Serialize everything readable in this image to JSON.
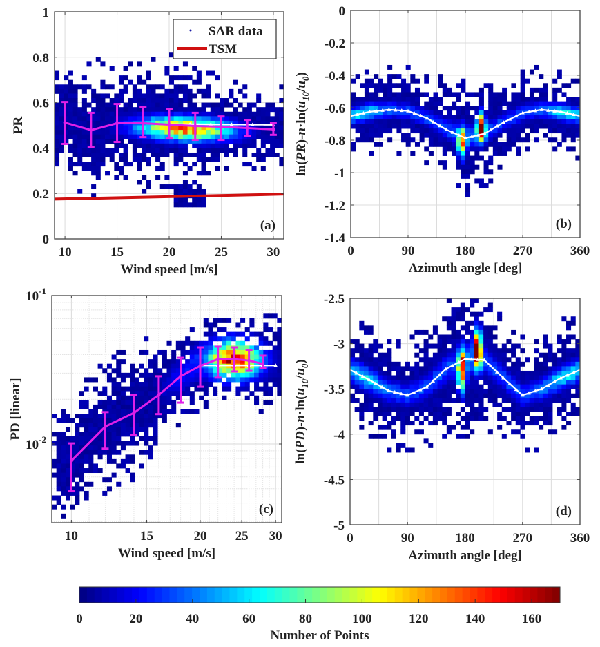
{
  "chart_data": [
    {
      "id": "a",
      "type": "heatmap",
      "panel_label": "(a)",
      "xlabel": "Wind speed [m/s]",
      "ylabel": "PR",
      "xscale": "linear",
      "yscale": "linear",
      "xlim": [
        9,
        31
      ],
      "ylim": [
        0,
        1
      ],
      "xticks": [
        10,
        15,
        20,
        25,
        30
      ],
      "xtick_labels": [
        "10",
        "15",
        "20",
        "25",
        "30"
      ],
      "yticks": [
        0,
        0.2,
        0.4,
        0.6,
        0.8,
        1
      ],
      "ytick_labels": [
        "0",
        "0.2",
        "0.4",
        "0.6",
        "0.8",
        "1"
      ],
      "grid": true,
      "legend": {
        "placement": "top-right",
        "entries": [
          {
            "label": "SAR data",
            "marker": "dot",
            "color": "#1a1aa6"
          },
          {
            "label": "TSM",
            "marker": "line",
            "color": "#d01010"
          }
        ]
      },
      "density_model": {
        "center_x": 21.5,
        "center_y": 0.5,
        "sx": 4.5,
        "sy": 0.07,
        "peak": 125,
        "x_range": [
          9,
          31
        ],
        "y_spread_extra": 0.12
      },
      "bin_means": {
        "name": "binned mean ± std",
        "color": "#e020e8",
        "x": [
          10,
          12.5,
          15,
          17.5,
          20,
          22.5,
          25,
          27.5,
          30
        ],
        "y": [
          0.512,
          0.479,
          0.509,
          0.509,
          0.503,
          0.497,
          0.494,
          0.488,
          0.482
        ],
        "upper": [
          0.603,
          0.555,
          0.594,
          0.579,
          0.57,
          0.555,
          0.539,
          0.524,
          0.512
        ],
        "lower": [
          0.418,
          0.403,
          0.427,
          0.448,
          0.442,
          0.436,
          0.436,
          0.452,
          0.458
        ]
      },
      "model_curve": {
        "name": "fit",
        "color": "#ffffff",
        "x": [
          20,
          22.5,
          25,
          27.5,
          30
        ],
        "y": [
          0.505,
          0.505,
          0.504,
          0.503,
          0.502
        ]
      },
      "tsm_line": {
        "name": "TSM",
        "color": "#d01010",
        "x": [
          9,
          31
        ],
        "y": [
          0.175,
          0.197
        ]
      }
    },
    {
      "id": "b",
      "type": "heatmap",
      "panel_label": "(b)",
      "xlabel": "Azimuth angle [deg]",
      "ylabel_parts": [
        "ln(",
        "PR",
        ")-",
        "n",
        "·ln(",
        "u",
        "10",
        "/",
        "u",
        "0",
        ")"
      ],
      "xscale": "linear",
      "yscale": "linear",
      "xlim": [
        0,
        360
      ],
      "ylim": [
        -1.4,
        0
      ],
      "xticks": [
        0,
        90,
        180,
        270,
        360
      ],
      "xtick_labels": [
        "0",
        "90",
        "180",
        "270",
        "360"
      ],
      "xgrid_step": 45,
      "yticks": [
        -1.4,
        -1.2,
        -1,
        -0.8,
        -0.6,
        -0.4,
        -0.2,
        0
      ],
      "ytick_labels": [
        "-1.4",
        "-1.2",
        "-1",
        "-0.8",
        "-0.6",
        "-0.4",
        "-0.2",
        "0"
      ],
      "grid": true,
      "density_model": {
        "sy": 0.09,
        "peak": 60,
        "hotspots": [
          {
            "x": 175,
            "y": -0.82,
            "v": 130
          },
          {
            "x": 205,
            "y": -0.72,
            "v": 165
          }
        ]
      },
      "model_curve": {
        "name": "fit",
        "color": "#ffffff",
        "x": [
          0,
          30,
          60,
          90,
          120,
          150,
          180,
          210,
          240,
          270,
          300,
          330,
          360
        ],
        "y": [
          -0.651,
          -0.625,
          -0.612,
          -0.62,
          -0.665,
          -0.735,
          -0.787,
          -0.76,
          -0.69,
          -0.632,
          -0.612,
          -0.625,
          -0.651
        ]
      }
    },
    {
      "id": "c",
      "type": "heatmap",
      "panel_label": "(c)",
      "xlabel": "Wind speed [m/s]",
      "ylabel": "PD [linear]",
      "xscale": "log",
      "yscale": "log",
      "xlim": [
        9,
        31
      ],
      "ylim": [
        0.00295,
        0.1
      ],
      "xticks": [
        10,
        15,
        20,
        25,
        30
      ],
      "xtick_labels": [
        "10",
        "15",
        "20",
        "25",
        "30"
      ],
      "yticks": [
        0.01,
        0.1
      ],
      "ytick_labels": [
        {
          "base": "10",
          "exp": "-2"
        },
        {
          "base": "10",
          "exp": "-1"
        }
      ],
      "grid": true,
      "density_model": {
        "peak": 150,
        "sx": 0.06,
        "sy": 0.12,
        "center": [
          24,
          0.037
        ]
      },
      "bin_means": {
        "name": "binned mean ± std",
        "color": "#e020e8",
        "x": [
          10,
          12,
          14,
          16,
          18,
          20,
          22,
          24,
          26,
          28
        ],
        "y": [
          0.0077,
          0.0131,
          0.0162,
          0.0214,
          0.0286,
          0.0336,
          0.0373,
          0.0373,
          0.0365,
          0.0346
        ],
        "upper": [
          0.0101,
          0.0164,
          0.0214,
          0.0286,
          0.0381,
          0.0448,
          0.0453,
          0.0448,
          0.0429,
          0.0394
        ],
        "lower": [
          0.0048,
          0.0093,
          0.0115,
          0.0159,
          0.019,
          0.0243,
          0.028,
          0.0308,
          0.0311,
          0.0325
        ]
      },
      "model_curve": {
        "name": "fit",
        "color": "#ffffff",
        "x": [
          20,
          22.5,
          25,
          27.5,
          30
        ],
        "y": [
          0.0338,
          0.0338,
          0.0338,
          0.0338,
          0.0338
        ]
      }
    },
    {
      "id": "d",
      "type": "heatmap",
      "panel_label": "(d)",
      "xlabel": "Azimuth angle [deg]",
      "ylabel_parts": [
        "ln(",
        "PD",
        ")-",
        "n",
        "·ln(",
        "u",
        "10",
        "/",
        "u",
        "0",
        ")"
      ],
      "xscale": "linear",
      "yscale": "linear",
      "xlim": [
        0,
        360
      ],
      "ylim": [
        -5,
        -2.5
      ],
      "xticks": [
        0,
        90,
        180,
        270,
        360
      ],
      "xtick_labels": [
        "0",
        "90",
        "180",
        "270",
        "360"
      ],
      "xgrid_step": 45,
      "yticks": [
        -5,
        -4.5,
        -4,
        -3.5,
        -3,
        -2.5
      ],
      "ytick_labels": [
        "-5",
        "-4.5",
        "-4",
        "-3.5",
        "-3",
        "-2.5"
      ],
      "grid": true,
      "density_model": {
        "sy": 0.22,
        "peak": 60,
        "hotspots": [
          {
            "x": 175,
            "y": -3.3,
            "v": 150
          },
          {
            "x": 200,
            "y": -3.05,
            "v": 170
          }
        ]
      },
      "model_curve": {
        "name": "fit",
        "color": "#ffffff",
        "x": [
          0,
          30,
          60,
          90,
          120,
          150,
          180,
          210,
          240,
          270,
          300,
          330,
          360
        ],
        "y": [
          -3.29,
          -3.4,
          -3.52,
          -3.57,
          -3.48,
          -3.28,
          -3.17,
          -3.18,
          -3.38,
          -3.57,
          -3.5,
          -3.38,
          -3.29
        ]
      }
    }
  ],
  "colorbar": {
    "label": "Number of Points",
    "range": [
      0,
      170
    ],
    "ticks": [
      0,
      20,
      40,
      60,
      80,
      100,
      120,
      140,
      160
    ],
    "tick_labels": [
      "0",
      "20",
      "40",
      "60",
      "80",
      "100",
      "120",
      "140",
      "160"
    ],
    "colormap": "jet"
  }
}
